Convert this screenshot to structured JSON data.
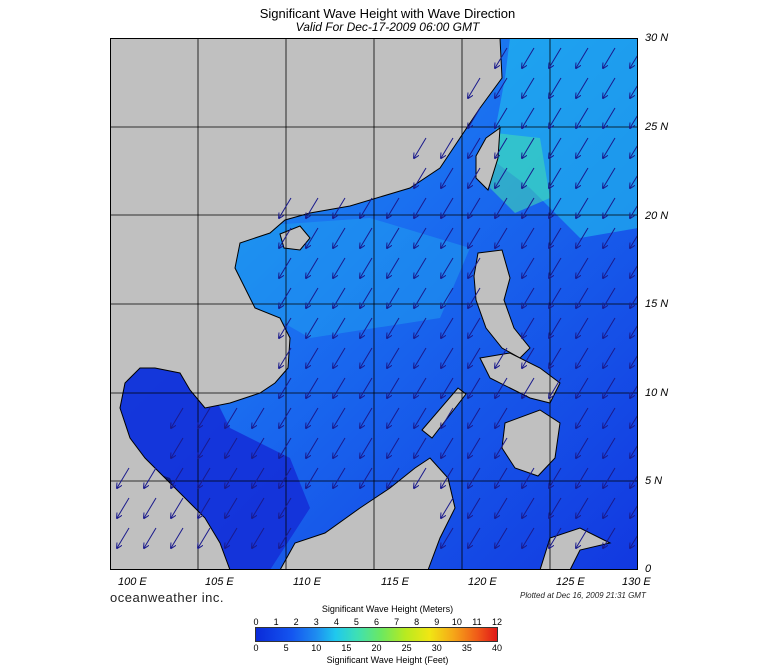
{
  "title": "Significant Wave Height with Wave Direction",
  "subtitle": "Valid For Dec-17-2009 06:00 GMT",
  "logo": "oceanweather inc.",
  "plotted": "Plotted at Dec 16, 2009 21:31 GMT",
  "map": {
    "lon_range": [
      100,
      130
    ],
    "lat_range": [
      0,
      30
    ],
    "lon_labels": [
      "100 E",
      "105 E",
      "110 E",
      "115 E",
      "120 E",
      "125 E",
      "130 E"
    ],
    "lat_labels": [
      "30 N",
      "25 N",
      "20 N",
      "15 N",
      "10 N",
      "5 N",
      "0"
    ],
    "land_color": "#c0c0c0",
    "wave_direction": "toward southwest (northeast monsoon)"
  },
  "colorbar": {
    "title_top": "Significant Wave Height (Meters)",
    "title_bottom": "Significant Wave Height (Feet)",
    "meters": [
      "0",
      "1",
      "2",
      "3",
      "4",
      "5",
      "6",
      "7",
      "8",
      "9",
      "10",
      "11",
      "12"
    ],
    "feet": [
      "0",
      "5",
      "10",
      "15",
      "20",
      "25",
      "30",
      "35",
      "40"
    ]
  }
}
